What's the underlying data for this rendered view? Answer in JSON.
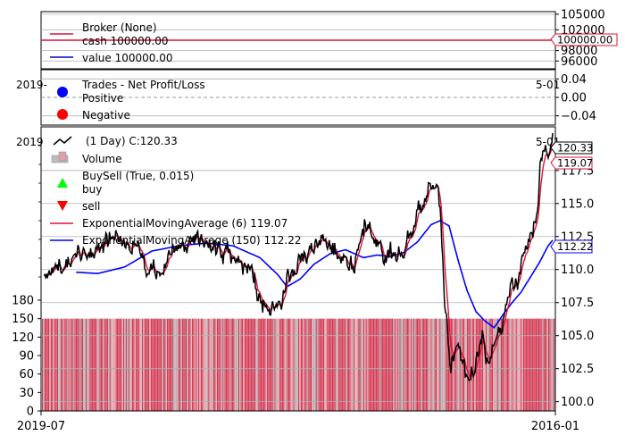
{
  "colors": {
    "cash": "#dc143c",
    "value": "#0000cd",
    "price": "#000000",
    "ema_fast": "#dc143c",
    "ema_slow": "#0000ff",
    "positive": "#0000ff",
    "negative": "#ff0000",
    "buy": "#00ff00",
    "sell": "#ff0000",
    "volume_up": "#e0a0a8",
    "volume_down": "#d33b56",
    "grid": "#b0b0b0"
  },
  "x_axis": {
    "ticks": [
      {
        "label": "2019-07",
        "value": 0
      },
      {
        "label": "2016-01",
        "value": 1
      }
    ],
    "ghost_labels": {
      "panel_positive": "2019-",
      "panel_price_left": "2019",
      "panel_positive_right": "5-01",
      "panel_price_right": "5-01"
    }
  },
  "chart_data": [
    {
      "type": "line",
      "panel": "broker",
      "series": [
        {
          "name": "Broker (None)",
          "values": []
        },
        {
          "name": "cash 100000.00",
          "values": [
            100000,
            100000
          ]
        },
        {
          "name": "value 100000.00",
          "values": [
            100000,
            100000
          ]
        }
      ],
      "ylim": [
        94500,
        105500
      ],
      "yticks": [
        "96000",
        "98000",
        "100000",
        "102000",
        "105000"
      ],
      "last_value_tag": "100000.00"
    },
    {
      "type": "scatter",
      "panel": "trades",
      "series": [
        {
          "name": "Trades - Net Profit/Loss",
          "values": []
        },
        {
          "name": "Positive",
          "values": []
        },
        {
          "name": "Negative",
          "values": []
        }
      ],
      "ylim": [
        -0.06,
        0.06
      ],
      "yticks": [
        "−0.04",
        "0.00",
        "0.04"
      ]
    },
    {
      "type": "line",
      "panel": "price",
      "legend": {
        "price": "(1 Day) C:120.33",
        "volume": "Volume",
        "buysell": "BuySell (True, 0.015)",
        "buy": "buy",
        "sell": "sell",
        "ema_fast": "ExponentialMovingAverage (6) 119.07",
        "ema_slow": "ExponentialMovingAverage (150) 112.22"
      },
      "price_ylim": [
        99.3,
        120.8
      ],
      "price_yticks": [
        "100.0",
        "102.5",
        "105.0",
        "107.5",
        "110.0",
        "112.5",
        "115.0",
        "117.5"
      ],
      "volume_ylim": [
        0,
        180
      ],
      "volume_yticks": [
        "0",
        "30",
        "60",
        "90",
        "120",
        "150",
        "180"
      ],
      "price_anchors": [
        [
          0,
          110.0
        ],
        [
          10,
          109.9
        ],
        [
          20,
          110.2
        ],
        [
          35,
          110.8
        ],
        [
          55,
          111.5
        ],
        [
          70,
          112.3
        ],
        [
          82,
          112.5
        ],
        [
          92,
          111.8
        ],
        [
          105,
          111.4
        ],
        [
          115,
          110.3
        ],
        [
          125,
          109.7
        ],
        [
          135,
          110.4
        ],
        [
          145,
          111.3
        ],
        [
          158,
          112.0
        ],
        [
          170,
          112.6
        ],
        [
          180,
          112.1
        ],
        [
          190,
          111.6
        ],
        [
          202,
          111.1
        ],
        [
          215,
          110.8
        ],
        [
          225,
          110.4
        ],
        [
          232,
          109.5
        ],
        [
          238,
          108.2
        ],
        [
          243,
          106.9
        ],
        [
          248,
          106.4
        ],
        [
          254,
          106.9
        ],
        [
          262,
          107.5
        ],
        [
          270,
          108.8
        ],
        [
          280,
          110.0
        ],
        [
          292,
          111.2
        ],
        [
          302,
          112.0
        ],
        [
          312,
          112.0
        ],
        [
          322,
          111.5
        ],
        [
          335,
          110.7
        ],
        [
          344,
          110.3
        ],
        [
          352,
          112.8
        ],
        [
          358,
          113.4
        ],
        [
          366,
          112.6
        ],
        [
          374,
          111.8
        ],
        [
          383,
          111.0
        ],
        [
          392,
          110.9
        ],
        [
          400,
          111.9
        ],
        [
          408,
          113.2
        ],
        [
          418,
          114.2
        ],
        [
          426,
          116.0
        ],
        [
          432,
          116.8
        ],
        [
          437,
          117.0
        ],
        [
          441,
          113.3
        ],
        [
          446,
          106.5
        ],
        [
          452,
          102.8
        ],
        [
          460,
          103.8
        ],
        [
          468,
          101.7
        ],
        [
          474,
          101.1
        ],
        [
          480,
          103.0
        ],
        [
          488,
          104.9
        ],
        [
          494,
          102.8
        ],
        [
          500,
          105.0
        ],
        [
          508,
          105.4
        ],
        [
          514,
          108.2
        ],
        [
          520,
          109.3
        ],
        [
          526,
          109.2
        ],
        [
          532,
          110.6
        ],
        [
          538,
          112.0
        ],
        [
          543,
          113.0
        ],
        [
          548,
          115.2
        ],
        [
          552,
          118.8
        ],
        [
          556,
          119.4
        ],
        [
          561,
          118.3
        ],
        [
          565,
          119.2
        ]
      ],
      "ema_fast_last": 119.07,
      "ema_slow_last": 112.22,
      "ema_slow_anchors": [
        [
          36,
          109.8
        ],
        [
          60,
          109.7
        ],
        [
          90,
          110.2
        ],
        [
          120,
          111.4
        ],
        [
          150,
          111.8
        ],
        [
          180,
          112.0
        ],
        [
          210,
          111.8
        ],
        [
          240,
          110.9
        ],
        [
          260,
          109.6
        ],
        [
          270,
          108.7
        ],
        [
          285,
          109.3
        ],
        [
          300,
          110.4
        ],
        [
          318,
          111.2
        ],
        [
          335,
          111.5
        ],
        [
          355,
          110.9
        ],
        [
          370,
          111.1
        ],
        [
          385,
          111.0
        ],
        [
          400,
          111.3
        ],
        [
          415,
          112.1
        ],
        [
          430,
          113.4
        ],
        [
          440,
          113.7
        ],
        [
          450,
          113.3
        ],
        [
          460,
          110.7
        ],
        [
          470,
          108.4
        ],
        [
          480,
          106.8
        ],
        [
          490,
          106.1
        ],
        [
          500,
          105.6
        ],
        [
          510,
          106.6
        ],
        [
          520,
          107.5
        ],
        [
          530,
          108.3
        ],
        [
          540,
          109.4
        ],
        [
          550,
          110.5
        ],
        [
          560,
          111.8
        ],
        [
          565,
          112.22
        ]
      ],
      "price_last_tag": "120.33",
      "ema_fast_tag": "119.07",
      "ema_slow_tag": "112.22",
      "volume_level": 150
    }
  ]
}
